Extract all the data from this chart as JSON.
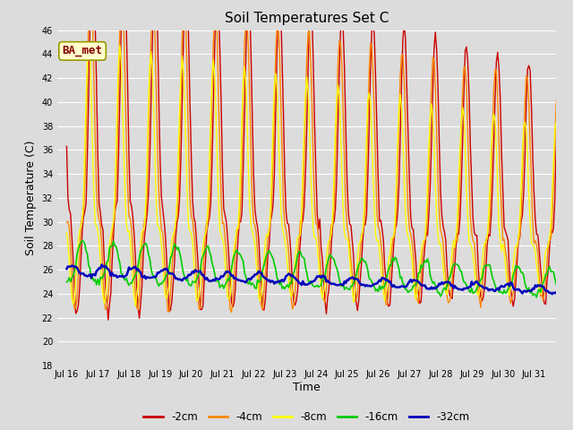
{
  "title": "Soil Temperatures Set C",
  "xlabel": "Time",
  "ylabel": "Soil Temperature (C)",
  "ylim": [
    18,
    46
  ],
  "yticks": [
    18,
    20,
    22,
    24,
    26,
    28,
    30,
    32,
    34,
    36,
    38,
    40,
    42,
    44,
    46
  ],
  "bg_color": "#dcdcdc",
  "legend_label": "BA_met",
  "series_colors": [
    "#cc0000",
    "#ff8800",
    "#ffff00",
    "#00cc00",
    "#0000bb"
  ],
  "series_labels": [
    "-2cm",
    "-4cm",
    "-8cm",
    "-16cm",
    "-32cm"
  ],
  "series_widths": [
    1.0,
    1.0,
    1.0,
    1.2,
    1.8
  ],
  "annotation_box_facecolor": "#ffffcc",
  "annotation_box_edgecolor": "#999900",
  "annotation_text_color": "#880000",
  "annotation_fontsize": 9
}
